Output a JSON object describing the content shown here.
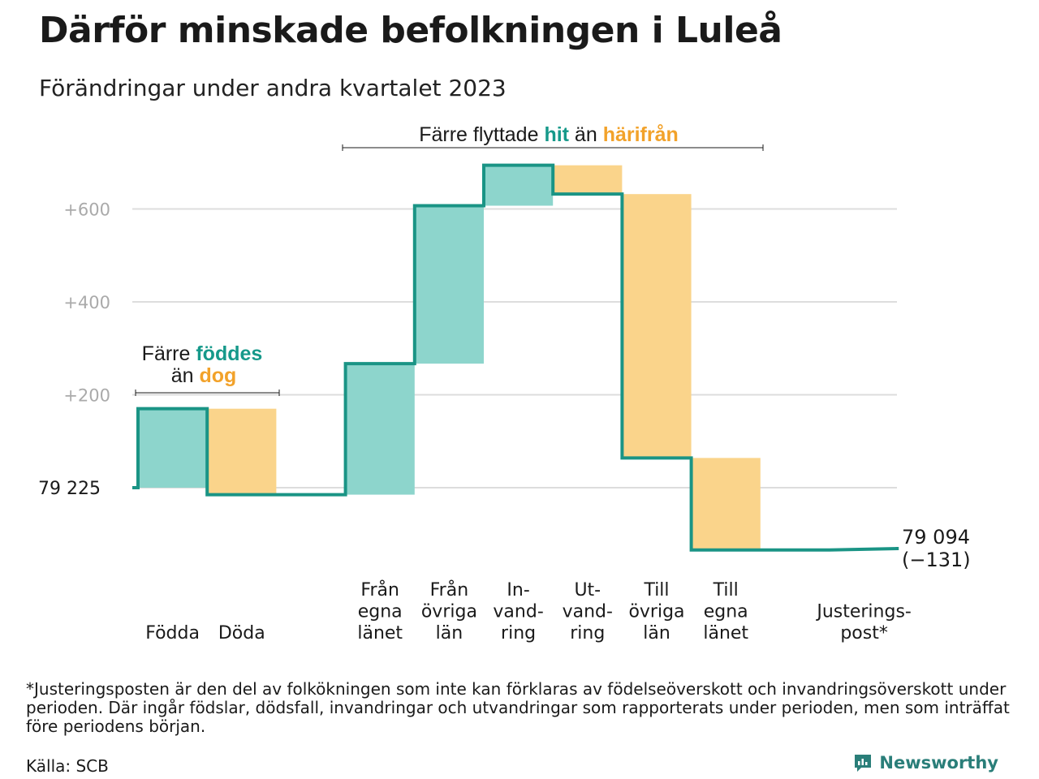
{
  "title": "Därför minskade befolkningen i Luleå",
  "subtitle": "Förändringar under andra kvartalet 2023",
  "footnote": "*Justeringsposten är den del av folkökningen som inte kan förklaras av födelseöverskott och invandringsöverskott under perioden. Där ingår födslar, dödsfall, invandringar och utvandringar som rapporterats under perioden, men som inträffat före periodens början.",
  "source": "Källa: SCB",
  "brand": "Newsworthy",
  "colors": {
    "increase": "#8dd5cc",
    "decrease": "#fad48b",
    "line": "#1a9485",
    "teal_text": "#16998a",
    "orange_text": "#f2a22a",
    "grid": "#dddddd",
    "tick": "#aaaaaa"
  },
  "chart_data": {
    "type": "waterfall",
    "start_value": 79225,
    "start_label": "79  225",
    "end_label_lines": [
      "79 094",
      "(−131)"
    ],
    "ylim": [
      -135,
      700
    ],
    "yticks": [
      200,
      400,
      600
    ],
    "ytick_labels": [
      "+200",
      "+400",
      "+600"
    ],
    "steps": [
      {
        "label": [
          "Födda"
        ],
        "value": 170,
        "kind": "increase"
      },
      {
        "label": [
          "Döda"
        ],
        "value": -185,
        "kind": "decrease"
      },
      {
        "label": [],
        "value": 0,
        "kind": "gap"
      },
      {
        "label": [
          "Från",
          "egna",
          "länet"
        ],
        "value": 282,
        "kind": "increase"
      },
      {
        "label": [
          "Från",
          "övriga",
          "län"
        ],
        "value": 340,
        "kind": "increase"
      },
      {
        "label": [
          "In-",
          "vand-",
          "ring"
        ],
        "value": 87,
        "kind": "increase"
      },
      {
        "label": [
          "Ut-",
          "vand-",
          "ring"
        ],
        "value": -62,
        "kind": "decrease"
      },
      {
        "label": [
          "Till",
          "övriga",
          "län"
        ],
        "value": -568,
        "kind": "decrease"
      },
      {
        "label": [
          "Till",
          "egna",
          "länet"
        ],
        "value": -198,
        "kind": "decrease"
      },
      {
        "label": [],
        "value": 0,
        "kind": "gap"
      },
      {
        "label": [
          "Justerings-",
          "post*"
        ],
        "value": 3,
        "kind": "adjust"
      }
    ],
    "annotations": [
      {
        "parts": [
          {
            "text": "Färre ",
            "style": "plain"
          },
          {
            "text": "föddes",
            "style": "teal"
          }
        ],
        "parts2": [
          {
            "text": "än ",
            "style": "plain"
          },
          {
            "text": "dog",
            "style": "orange"
          }
        ]
      },
      {
        "parts": [
          {
            "text": "Färre flyttade ",
            "style": "plain"
          },
          {
            "text": "hit",
            "style": "teal"
          },
          {
            "text": " än ",
            "style": "plain"
          },
          {
            "text": "härifrån",
            "style": "orange"
          }
        ]
      }
    ]
  }
}
